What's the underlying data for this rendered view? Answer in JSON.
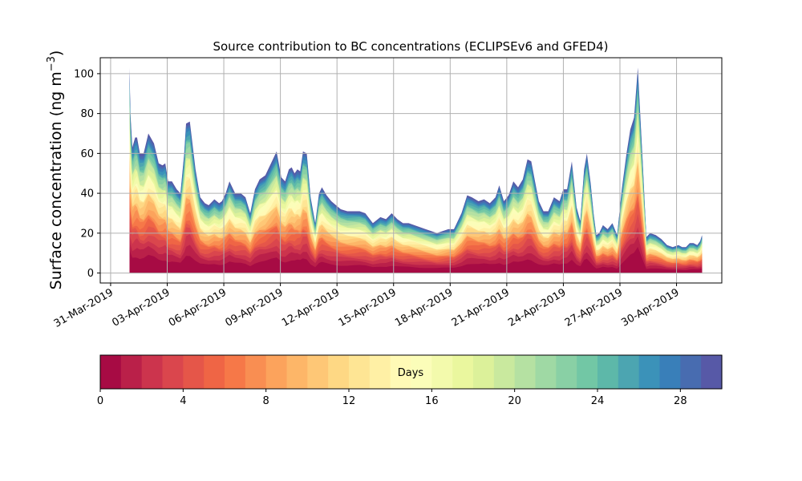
{
  "chart_data": {
    "type": "area",
    "stacked": true,
    "title": "Source contribution to BC concentrations (ECLIPSEv6 and GFED4)",
    "ylabel": "Surface concentration (ng m",
    "ylabel_superscript": "−3",
    "ylabel_suffix": ")",
    "xlabel": "",
    "ylim": [
      -5,
      108
    ],
    "yticks": [
      0,
      20,
      40,
      60,
      80,
      100
    ],
    "grid": true,
    "x_ticks": [
      "31-Mar-2019",
      "03-Apr-2019",
      "06-Apr-2019",
      "09-Apr-2019",
      "12-Apr-2019",
      "15-Apr-2019",
      "18-Apr-2019",
      "21-Apr-2019",
      "24-Apr-2019",
      "27-Apr-2019",
      "30-Apr-2019"
    ],
    "x_range_days": [
      -0.55,
      32.4
    ],
    "series_age_days": [
      0,
      30
    ],
    "total_series": {
      "x_days_since_31_Mar": [
        1.0,
        1.05,
        1.15,
        1.3,
        1.4,
        1.55,
        1.75,
        2.0,
        2.3,
        2.55,
        2.75,
        2.9,
        3.05,
        3.25,
        3.5,
        3.7,
        3.9,
        4.0,
        4.2,
        4.5,
        4.75,
        5.0,
        5.2,
        5.5,
        5.75,
        5.9,
        6.1,
        6.3,
        6.6,
        6.9,
        7.15,
        7.4,
        7.65,
        7.9,
        8.2,
        8.5,
        8.8,
        9.05,
        9.25,
        9.45,
        9.6,
        9.75,
        9.9,
        10.05,
        10.2,
        10.4,
        10.6,
        10.85,
        11.05,
        11.2,
        11.45,
        11.7,
        11.95,
        12.2,
        12.55,
        12.9,
        13.2,
        13.5,
        13.9,
        14.3,
        14.6,
        14.9,
        15.2,
        15.5,
        15.8,
        16.1,
        16.4,
        16.7,
        17.0,
        17.3,
        17.6,
        17.9,
        18.2,
        18.6,
        18.9,
        19.15,
        19.5,
        19.8,
        20.1,
        20.4,
        20.6,
        20.85,
        21.1,
        21.35,
        21.6,
        21.85,
        22.1,
        22.3,
        22.5,
        22.7,
        22.95,
        23.2,
        23.5,
        23.8,
        24.0,
        24.2,
        24.45,
        24.7,
        24.9,
        25.1,
        25.25,
        25.45,
        25.6,
        25.75,
        25.9,
        26.1,
        26.35,
        26.6,
        26.85,
        27.1,
        27.35,
        27.55,
        27.75,
        27.95,
        28.2,
        28.4,
        28.6,
        28.9,
        29.2,
        29.5,
        29.8,
        30.1,
        30.3,
        30.5,
        30.7,
        30.9,
        31.1,
        31.25,
        31.35
      ],
      "y_ng_m3": [
        103,
        80,
        63,
        68,
        68,
        60,
        60,
        70,
        65,
        55,
        54,
        55,
        46,
        46,
        42,
        40,
        60,
        75,
        76,
        52,
        38,
        35,
        34,
        37,
        35,
        36,
        40,
        46,
        40,
        40,
        38,
        30,
        42,
        47,
        49,
        55,
        61,
        48,
        46,
        52,
        53,
        50,
        52,
        51,
        61,
        60,
        38,
        25,
        40,
        43,
        39,
        36,
        34,
        32,
        31,
        31,
        31,
        30,
        25,
        28,
        27,
        30,
        27,
        25,
        25,
        24,
        23,
        22,
        21,
        20,
        21,
        22,
        22,
        30,
        39,
        38,
        36,
        37,
        35,
        38,
        44,
        36,
        39,
        46,
        43,
        47,
        57,
        56,
        46,
        36,
        31,
        31,
        38,
        36,
        42,
        42,
        56,
        33,
        26,
        52,
        60,
        45,
        30,
        19,
        20,
        24,
        22,
        25,
        19,
        42,
        60,
        72,
        78,
        103,
        57,
        18,
        20,
        19,
        17,
        14,
        13,
        14,
        13,
        13,
        15,
        15,
        14,
        16,
        19
      ]
    },
    "colorbar": {
      "label": "Days",
      "ticks": [
        "0",
        "4",
        "8",
        "12",
        "16",
        "20",
        "24",
        "28"
      ],
      "range": [
        0,
        30
      ],
      "colormap": "Spectral"
    }
  }
}
